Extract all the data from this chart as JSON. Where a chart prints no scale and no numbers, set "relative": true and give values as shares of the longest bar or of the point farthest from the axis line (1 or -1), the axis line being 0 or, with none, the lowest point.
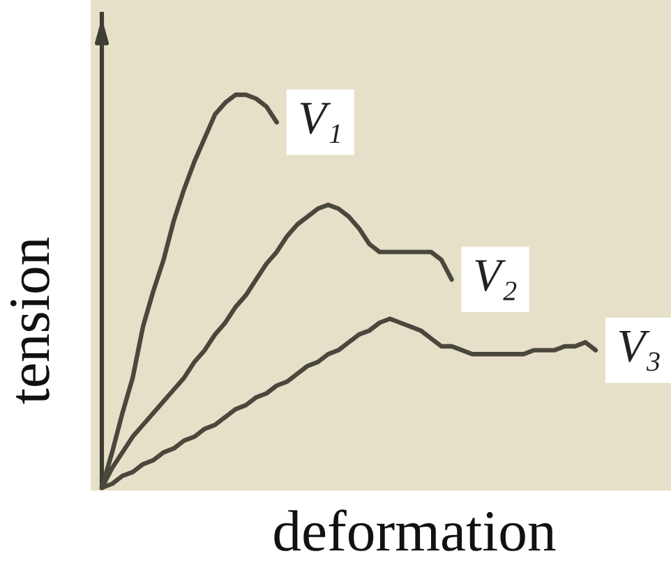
{
  "chart_data": {
    "type": "line",
    "relative": true,
    "xlabel": "deformation",
    "ylabel": "tension",
    "marker": "none",
    "line_style": "solid",
    "categories": [
      null,
      null,
      null,
      null,
      null,
      null,
      null,
      null,
      null,
      null,
      null,
      null,
      null,
      null,
      null,
      null,
      null,
      null,
      null,
      null,
      null,
      null,
      null,
      null,
      null,
      null,
      null,
      null,
      null,
      null,
      null,
      null,
      null,
      null,
      null,
      null,
      null,
      null,
      null,
      null,
      null,
      null,
      null,
      null,
      null,
      null,
      null,
      null,
      null
    ],
    "series": [
      {
        "name": "V₁",
        "color": "#4a483c",
        "values": [
          0,
          0.09,
          0.19,
          0.28,
          0.41,
          0.5,
          0.58,
          0.68,
          0.76,
          0.83,
          0.89,
          0.95,
          0.98,
          1.0,
          1.0,
          0.99,
          0.97,
          0.93,
          null,
          null,
          null,
          null,
          null,
          null,
          null,
          null,
          null,
          null,
          null,
          null,
          null,
          null,
          null,
          null,
          null,
          null,
          null,
          null,
          null,
          null,
          null,
          null,
          null,
          null,
          null,
          null,
          null,
          null,
          null
        ]
      },
      {
        "name": "V₂",
        "color": "#4a483c",
        "values": [
          0,
          0.05,
          0.09,
          0.13,
          0.16,
          0.19,
          0.22,
          0.25,
          0.28,
          0.32,
          0.35,
          0.39,
          0.42,
          0.46,
          0.49,
          0.53,
          0.57,
          0.6,
          0.64,
          0.67,
          0.69,
          0.71,
          0.72,
          0.71,
          0.69,
          0.66,
          0.62,
          0.6,
          0.6,
          0.6,
          0.6,
          0.6,
          0.6,
          0.58,
          0.53,
          null,
          null,
          null,
          null,
          null,
          null,
          null,
          null,
          null,
          null,
          null,
          null,
          null,
          null
        ]
      },
      {
        "name": "V₃",
        "color": "#4a483c",
        "values": [
          0,
          0.01,
          0.03,
          0.04,
          0.06,
          0.07,
          0.09,
          0.1,
          0.12,
          0.13,
          0.15,
          0.16,
          0.18,
          0.2,
          0.21,
          0.23,
          0.24,
          0.26,
          0.27,
          0.29,
          0.31,
          0.32,
          0.34,
          0.35,
          0.37,
          0.39,
          0.4,
          0.42,
          0.43,
          0.42,
          0.41,
          0.4,
          0.38,
          0.36,
          0.36,
          0.35,
          0.34,
          0.34,
          0.34,
          0.34,
          0.34,
          0.34,
          0.35,
          0.35,
          0.35,
          0.36,
          0.36,
          0.37,
          0.35
        ]
      }
    ]
  }
}
